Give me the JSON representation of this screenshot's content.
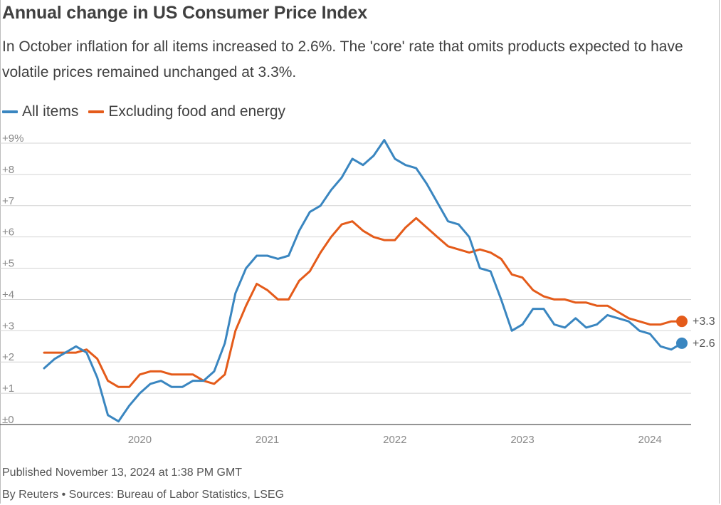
{
  "title": "Annual change in US Consumer Price Index",
  "subtitle": "In October inflation for all items increased to 2.6%. The 'core' rate that omits products expected to have volatile prices remained unchanged at 3.3%.",
  "legend": [
    {
      "label": "All items",
      "color": "#3a86c0"
    },
    {
      "label": "Excluding food and energy",
      "color": "#e45b1a"
    }
  ],
  "footer": {
    "published": "Published November 13, 2024 at 1:38 PM GMT",
    "sources": "By Reuters • Sources: Bureau of Labor Statistics, LSEG"
  },
  "chart_data": {
    "type": "line",
    "ylim": [
      0,
      9
    ],
    "y_ticks": [
      "±0",
      "+1",
      "+2",
      "+3",
      "+4",
      "+5",
      "+6",
      "+7",
      "+8",
      "+9%"
    ],
    "x_ticks": [
      "2020",
      "2021",
      "2022",
      "2023",
      "2024"
    ],
    "x_range": [
      "2019-10",
      "2024-10"
    ],
    "grid": "horizontal",
    "end_labels": [
      "+2.6",
      "+3.3"
    ],
    "series": [
      {
        "name": "All items",
        "color": "#3a86c0",
        "x": [
          "2019-10",
          "2019-11",
          "2019-12",
          "2020-01",
          "2020-02",
          "2020-03",
          "2020-04",
          "2020-05",
          "2020-06",
          "2020-07",
          "2020-08",
          "2020-09",
          "2020-10",
          "2020-11",
          "2020-12",
          "2021-01",
          "2021-02",
          "2021-03",
          "2021-04",
          "2021-05",
          "2021-06",
          "2021-07",
          "2021-08",
          "2021-09",
          "2021-10",
          "2021-11",
          "2021-12",
          "2022-01",
          "2022-02",
          "2022-03",
          "2022-04",
          "2022-05",
          "2022-06",
          "2022-07",
          "2022-08",
          "2022-09",
          "2022-10",
          "2022-11",
          "2022-12",
          "2023-01",
          "2023-02",
          "2023-03",
          "2023-04",
          "2023-05",
          "2023-06",
          "2023-07",
          "2023-08",
          "2023-09",
          "2023-10",
          "2023-11",
          "2023-12",
          "2024-01",
          "2024-02",
          "2024-03",
          "2024-04",
          "2024-05",
          "2024-06",
          "2024-07",
          "2024-08",
          "2024-09",
          "2024-10"
        ],
        "values": [
          1.8,
          2.1,
          2.3,
          2.5,
          2.3,
          1.5,
          0.3,
          0.1,
          0.6,
          1.0,
          1.3,
          1.4,
          1.2,
          1.2,
          1.4,
          1.4,
          1.7,
          2.6,
          4.2,
          5.0,
          5.4,
          5.4,
          5.3,
          5.4,
          6.2,
          6.8,
          7.0,
          7.5,
          7.9,
          8.5,
          8.3,
          8.6,
          9.1,
          8.5,
          8.3,
          8.2,
          7.7,
          7.1,
          6.5,
          6.4,
          6.0,
          5.0,
          4.9,
          4.0,
          3.0,
          3.2,
          3.7,
          3.7,
          3.2,
          3.1,
          3.4,
          3.1,
          3.2,
          3.5,
          3.4,
          3.3,
          3.0,
          2.9,
          2.5,
          2.4,
          2.6
        ]
      },
      {
        "name": "Excluding food and energy",
        "color": "#e45b1a",
        "x": [
          "2019-10",
          "2019-11",
          "2019-12",
          "2020-01",
          "2020-02",
          "2020-03",
          "2020-04",
          "2020-05",
          "2020-06",
          "2020-07",
          "2020-08",
          "2020-09",
          "2020-10",
          "2020-11",
          "2020-12",
          "2021-01",
          "2021-02",
          "2021-03",
          "2021-04",
          "2021-05",
          "2021-06",
          "2021-07",
          "2021-08",
          "2021-09",
          "2021-10",
          "2021-11",
          "2021-12",
          "2022-01",
          "2022-02",
          "2022-03",
          "2022-04",
          "2022-05",
          "2022-06",
          "2022-07",
          "2022-08",
          "2022-09",
          "2022-10",
          "2022-11",
          "2022-12",
          "2023-01",
          "2023-02",
          "2023-03",
          "2023-04",
          "2023-05",
          "2023-06",
          "2023-07",
          "2023-08",
          "2023-09",
          "2023-10",
          "2023-11",
          "2023-12",
          "2024-01",
          "2024-02",
          "2024-03",
          "2024-04",
          "2024-05",
          "2024-06",
          "2024-07",
          "2024-08",
          "2024-09",
          "2024-10"
        ],
        "values": [
          2.3,
          2.3,
          2.3,
          2.3,
          2.4,
          2.1,
          1.4,
          1.2,
          1.2,
          1.6,
          1.7,
          1.7,
          1.6,
          1.6,
          1.6,
          1.4,
          1.3,
          1.6,
          3.0,
          3.8,
          4.5,
          4.3,
          4.0,
          4.0,
          4.6,
          4.9,
          5.5,
          6.0,
          6.4,
          6.5,
          6.2,
          6.0,
          5.9,
          5.9,
          6.3,
          6.6,
          6.3,
          6.0,
          5.7,
          5.6,
          5.5,
          5.6,
          5.5,
          5.3,
          4.8,
          4.7,
          4.3,
          4.1,
          4.0,
          4.0,
          3.9,
          3.9,
          3.8,
          3.8,
          3.6,
          3.4,
          3.3,
          3.2,
          3.2,
          3.3,
          3.3
        ]
      }
    ]
  }
}
